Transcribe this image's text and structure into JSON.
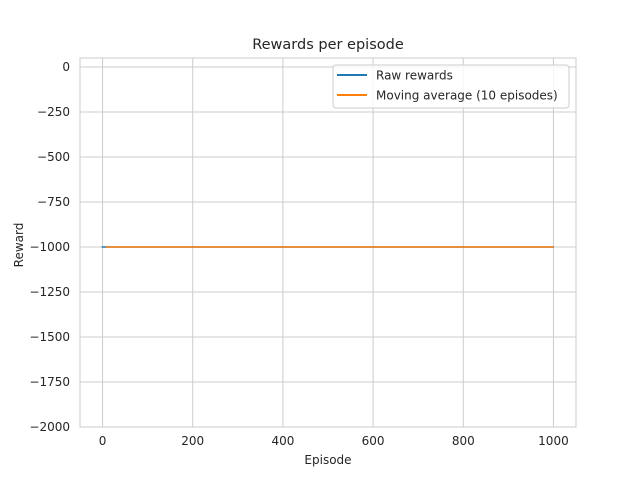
{
  "chart_data": {
    "type": "line",
    "title": "Rewards per episode",
    "xlabel": "Episode",
    "ylabel": "Reward",
    "xlim": [
      -50,
      1050
    ],
    "ylim": [
      -2000,
      50
    ],
    "xticks": [
      0,
      200,
      400,
      600,
      800,
      1000
    ],
    "yticks": [
      0,
      -250,
      -500,
      -750,
      -1000,
      -1250,
      -1500,
      -1750,
      -2000
    ],
    "xtick_labels": [
      "0",
      "200",
      "400",
      "600",
      "800",
      "1000"
    ],
    "ytick_labels": [
      "0",
      "−250",
      "−500",
      "−750",
      "−1000",
      "−1250",
      "−1500",
      "−1750",
      "−2000"
    ],
    "grid": true,
    "legend_position": "top-right",
    "series": [
      {
        "name": "Raw rewards",
        "color": "#1f77b4",
        "x": [
          0,
          999
        ],
        "y": [
          -1000,
          -1000
        ]
      },
      {
        "name": "Moving average (10 episodes)",
        "color": "#ff7f0e",
        "x": [
          9,
          999
        ],
        "y": [
          -1000,
          -1000
        ]
      }
    ]
  }
}
